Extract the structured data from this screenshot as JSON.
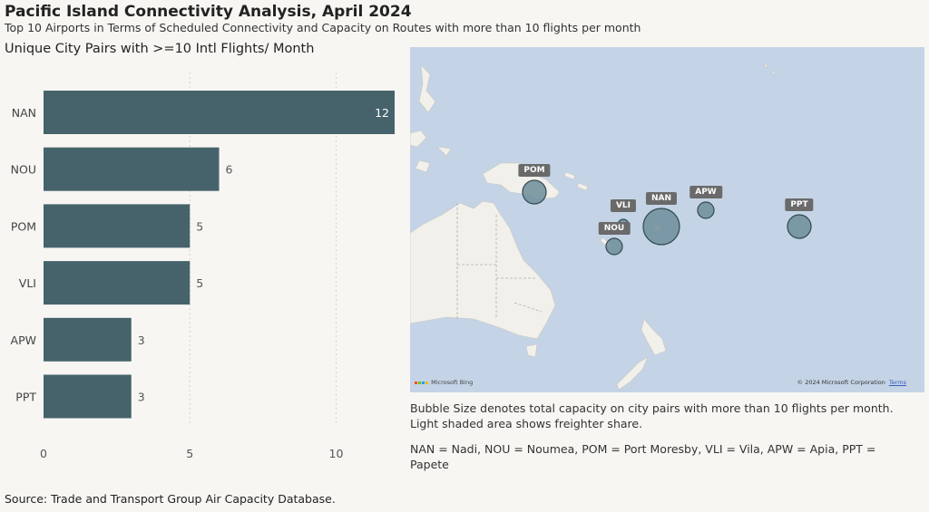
{
  "title": "Pacific Island Connectivity Analysis, April 2024",
  "subtitle": "Top 10 Airports in Terms of Scheduled Connectivity and Capacity on Routes with more than 10 flights per month",
  "chart_heading": "Unique City Pairs with >=10 Intl Flights/ Month",
  "colors": {
    "bar": "#46636b",
    "bubble": "#6d8d99",
    "bubble_stroke": "#2f4a52",
    "ocean": "#c4d4e6",
    "land": "#f2f0eb"
  },
  "chart_data": {
    "type": "bar",
    "orientation": "horizontal",
    "categories": [
      "NAN",
      "NOU",
      "POM",
      "VLI",
      "APW",
      "PPT"
    ],
    "values": [
      12,
      6,
      5,
      5,
      3,
      3
    ],
    "xlim": [
      0,
      12
    ],
    "xticks": [
      0,
      5,
      10
    ],
    "grid": "vertical dotted"
  },
  "map": {
    "airports": [
      {
        "code": "POM",
        "size": "medium"
      },
      {
        "code": "VLI",
        "size": "tiny"
      },
      {
        "code": "NOU",
        "size": "small"
      },
      {
        "code": "NAN",
        "size": "large"
      },
      {
        "code": "APW",
        "size": "small"
      },
      {
        "code": "PPT",
        "size": "medium"
      }
    ],
    "brand": "Microsoft Bing",
    "copyright": "© 2024 Microsoft Corporation",
    "terms": "Terms"
  },
  "notes": {
    "bubble_note": "Bubble Size denotes total capacity on city pairs with more than 10 flights per month. Light shaded area shows freighter share.",
    "legend_note": "NAN = Nadi, NOU = Noumea, POM = Port Moresby, VLI = Vila, APW = Apia, PPT = Papete"
  },
  "source": "Source: Trade and Transport Group Air Capacity Database."
}
